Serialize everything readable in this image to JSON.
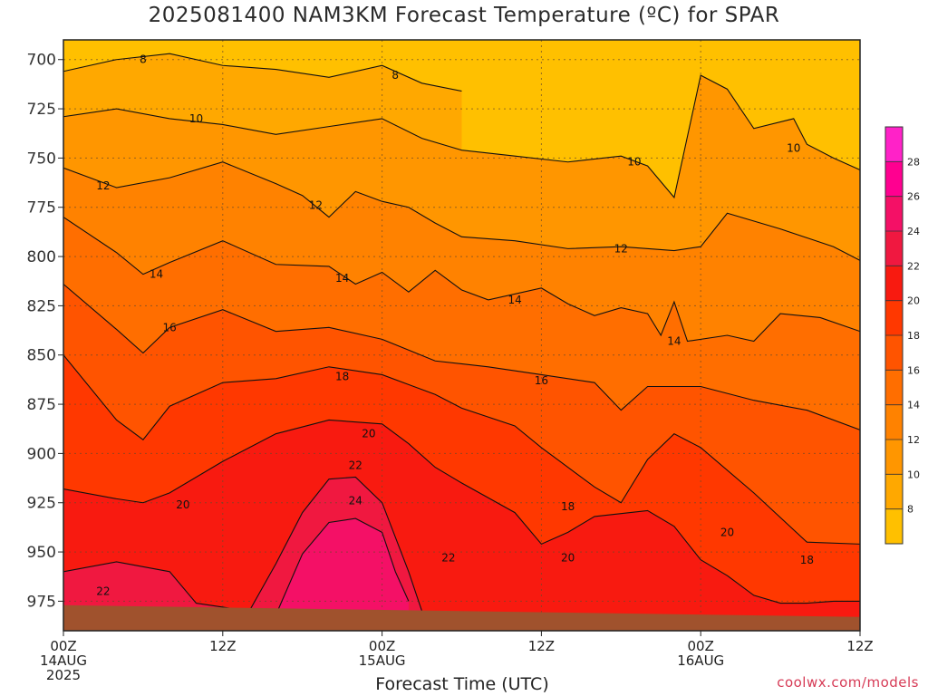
{
  "chart_data": {
    "type": "heatmap",
    "title": "2025081400 NAM3KM Forecast Temperature (ºC) for SPAR",
    "xlabel": "Forecast Time (UTC)",
    "ylabel": "",
    "y_axis": {
      "quantity": "pressure (hPa)",
      "inverted": true,
      "range": [
        990,
        690
      ],
      "ticks": [
        700,
        725,
        750,
        775,
        800,
        825,
        850,
        875,
        900,
        925,
        950,
        975
      ]
    },
    "x_axis": {
      "range_hours": [
        0,
        60
      ],
      "ticks": [
        {
          "hour": 0,
          "lines": [
            "00Z",
            "14AUG",
            "2025"
          ]
        },
        {
          "hour": 12,
          "lines": [
            "12Z"
          ]
        },
        {
          "hour": 24,
          "lines": [
            "00Z",
            "15AUG"
          ]
        },
        {
          "hour": 36,
          "lines": [
            "12Z"
          ]
        },
        {
          "hour": 48,
          "lines": [
            "00Z",
            "16AUG"
          ]
        },
        {
          "hour": 60,
          "lines": [
            "12Z"
          ]
        }
      ]
    },
    "grid": true,
    "colorbar": {
      "ticks": [
        8,
        10,
        12,
        14,
        16,
        18,
        20,
        22,
        24,
        26,
        28
      ],
      "colors": [
        "#ffc000",
        "#ffa800",
        "#ff9600",
        "#ff8200",
        "#ff6e00",
        "#ff5400",
        "#ff3800",
        "#f81a10",
        "#f01840",
        "#f41066",
        "#ff0090",
        "#ff22c8"
      ]
    },
    "contour_levels": [
      8,
      10,
      12,
      14,
      16,
      18,
      20,
      22,
      24,
      26,
      28
    ],
    "contours": [
      {
        "level": 8,
        "points": [
          [
            0,
            706
          ],
          [
            4,
            700
          ],
          [
            8,
            697
          ],
          [
            12,
            703
          ],
          [
            16,
            705
          ],
          [
            20,
            709
          ],
          [
            24,
            703
          ],
          [
            27,
            712
          ],
          [
            30,
            716
          ]
        ]
      },
      {
        "level": 10,
        "points": [
          [
            0,
            729
          ],
          [
            4,
            725
          ],
          [
            8,
            730
          ],
          [
            12,
            733
          ],
          [
            16,
            738
          ],
          [
            20,
            734
          ],
          [
            24,
            730
          ],
          [
            27,
            740
          ],
          [
            30,
            746
          ],
          [
            34,
            749
          ],
          [
            38,
            752
          ],
          [
            42,
            749
          ],
          [
            44,
            754
          ],
          [
            46,
            770
          ],
          [
            48,
            708
          ],
          [
            50,
            715
          ],
          [
            52,
            735
          ],
          [
            55,
            730
          ],
          [
            56,
            743
          ],
          [
            58,
            750
          ],
          [
            60,
            756
          ]
        ]
      },
      {
        "level": 12,
        "points": [
          [
            0,
            755
          ],
          [
            4,
            765
          ],
          [
            8,
            760
          ],
          [
            12,
            752
          ],
          [
            16,
            763
          ],
          [
            18,
            769
          ],
          [
            20,
            780
          ],
          [
            22,
            767
          ],
          [
            24,
            772
          ],
          [
            26,
            775
          ],
          [
            28,
            783
          ],
          [
            30,
            790
          ],
          [
            34,
            792
          ],
          [
            38,
            796
          ],
          [
            42,
            795
          ],
          [
            46,
            797
          ],
          [
            48,
            795
          ],
          [
            50,
            778
          ],
          [
            54,
            786
          ],
          [
            58,
            795
          ],
          [
            60,
            802
          ]
        ]
      },
      {
        "level": 14,
        "points": [
          [
            0,
            780
          ],
          [
            4,
            798
          ],
          [
            6,
            809
          ],
          [
            8,
            803
          ],
          [
            12,
            792
          ],
          [
            16,
            804
          ],
          [
            20,
            805
          ],
          [
            22,
            814
          ],
          [
            24,
            808
          ],
          [
            26,
            818
          ],
          [
            28,
            807
          ],
          [
            30,
            817
          ],
          [
            32,
            822
          ],
          [
            36,
            816
          ],
          [
            38,
            824
          ],
          [
            40,
            830
          ],
          [
            42,
            826
          ],
          [
            44,
            829
          ],
          [
            45,
            840
          ],
          [
            46,
            823
          ],
          [
            47,
            843
          ],
          [
            50,
            840
          ],
          [
            52,
            843
          ],
          [
            54,
            829
          ],
          [
            57,
            831
          ],
          [
            60,
            838
          ]
        ]
      },
      {
        "level": 16,
        "points": [
          [
            0,
            814
          ],
          [
            4,
            837
          ],
          [
            6,
            849
          ],
          [
            8,
            836
          ],
          [
            12,
            827
          ],
          [
            16,
            838
          ],
          [
            20,
            836
          ],
          [
            24,
            842
          ],
          [
            28,
            853
          ],
          [
            32,
            856
          ],
          [
            36,
            860
          ],
          [
            40,
            864
          ],
          [
            42,
            878
          ],
          [
            44,
            866
          ],
          [
            48,
            866
          ],
          [
            52,
            873
          ],
          [
            56,
            878
          ],
          [
            60,
            888
          ]
        ]
      },
      {
        "level": 18,
        "points": [
          [
            0,
            850
          ],
          [
            4,
            883
          ],
          [
            6,
            893
          ],
          [
            8,
            876
          ],
          [
            12,
            864
          ],
          [
            16,
            862
          ],
          [
            20,
            856
          ],
          [
            24,
            860
          ],
          [
            26,
            865
          ],
          [
            28,
            870
          ],
          [
            30,
            877
          ],
          [
            34,
            886
          ],
          [
            36,
            897
          ],
          [
            40,
            917
          ],
          [
            42,
            925
          ],
          [
            44,
            903
          ],
          [
            46,
            890
          ],
          [
            48,
            897
          ],
          [
            52,
            920
          ],
          [
            56,
            945
          ],
          [
            60,
            946
          ]
        ]
      },
      {
        "level": 20,
        "points": [
          [
            0,
            918
          ],
          [
            4,
            923
          ],
          [
            6,
            925
          ],
          [
            8,
            920
          ],
          [
            12,
            904
          ],
          [
            16,
            890
          ],
          [
            20,
            883
          ],
          [
            24,
            885
          ],
          [
            26,
            895
          ],
          [
            28,
            907
          ],
          [
            30,
            915
          ],
          [
            34,
            930
          ],
          [
            36,
            946
          ],
          [
            38,
            940
          ],
          [
            40,
            932
          ],
          [
            44,
            929
          ],
          [
            46,
            937
          ],
          [
            48,
            954
          ],
          [
            50,
            962
          ],
          [
            52,
            972
          ],
          [
            54,
            976
          ],
          [
            56,
            976
          ],
          [
            58,
            975
          ],
          [
            60,
            975
          ]
        ]
      },
      {
        "level": 22,
        "points": [
          [
            0,
            960
          ],
          [
            4,
            955
          ],
          [
            8,
            960
          ],
          [
            10,
            976
          ],
          [
            14,
            980
          ],
          [
            16,
            956
          ],
          [
            18,
            930
          ],
          [
            20,
            913
          ],
          [
            22,
            912
          ],
          [
            24,
            925
          ],
          [
            26,
            960
          ],
          [
            27,
            980
          ]
        ]
      },
      {
        "level": 24,
        "points": [
          [
            16,
            982
          ],
          [
            18,
            951
          ],
          [
            20,
            935
          ],
          [
            22,
            933
          ],
          [
            24,
            940
          ],
          [
            25,
            960
          ],
          [
            26,
            975
          ]
        ]
      }
    ],
    "labels": [
      {
        "text": "8",
        "hour": 6,
        "hpa": 700
      },
      {
        "text": "8",
        "hour": 25,
        "hpa": 708
      },
      {
        "text": "10",
        "hour": 10,
        "hpa": 730
      },
      {
        "text": "10",
        "hour": 43,
        "hpa": 752
      },
      {
        "text": "10",
        "hour": 55,
        "hpa": 745
      },
      {
        "text": "12",
        "hour": 3,
        "hpa": 764
      },
      {
        "text": "12",
        "hour": 19,
        "hpa": 774
      },
      {
        "text": "12",
        "hour": 42,
        "hpa": 796
      },
      {
        "text": "14",
        "hour": 7,
        "hpa": 809
      },
      {
        "text": "14",
        "hour": 21,
        "hpa": 811
      },
      {
        "text": "14",
        "hour": 34,
        "hpa": 822
      },
      {
        "text": "14",
        "hour": 46,
        "hpa": 843
      },
      {
        "text": "16",
        "hour": 8,
        "hpa": 836
      },
      {
        "text": "16",
        "hour": 36,
        "hpa": 863
      },
      {
        "text": "18",
        "hour": 21,
        "hpa": 861
      },
      {
        "text": "18",
        "hour": 38,
        "hpa": 927
      },
      {
        "text": "18",
        "hour": 56,
        "hpa": 954
      },
      {
        "text": "20",
        "hour": 9,
        "hpa": 926
      },
      {
        "text": "20",
        "hour": 23,
        "hpa": 890
      },
      {
        "text": "20",
        "hour": 38,
        "hpa": 953
      },
      {
        "text": "20",
        "hour": 50,
        "hpa": 940
      },
      {
        "text": "22",
        "hour": 3,
        "hpa": 970
      },
      {
        "text": "22",
        "hour": 22,
        "hpa": 906
      },
      {
        "text": "22",
        "hour": 29,
        "hpa": 953
      },
      {
        "text": "24",
        "hour": 22,
        "hpa": 924
      }
    ],
    "terrain": {
      "color": "#a0522d",
      "hpa_top_at_start": 977,
      "hpa_top_at_end": 983
    }
  },
  "credit": "coolwx.com/models"
}
